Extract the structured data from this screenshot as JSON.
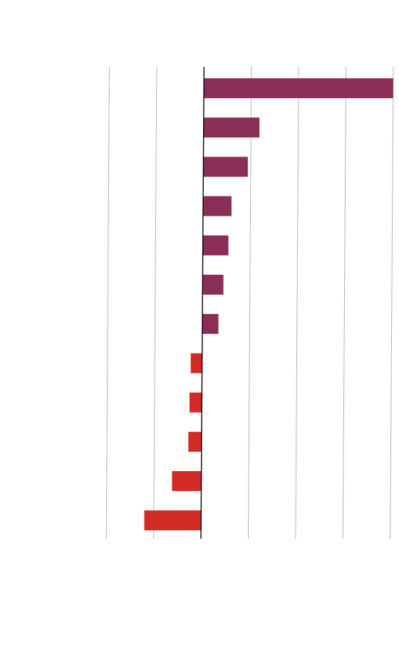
{
  "chart_data": {
    "type": "bar",
    "orientation": "horizontal",
    "title": "",
    "xlabel": "",
    "ylabel": "",
    "categories": [
      "",
      "",
      "",
      "",
      "",
      "",
      "",
      "",
      "",
      "",
      "",
      ""
    ],
    "values": [
      20.0,
      5.9,
      4.7,
      3.0,
      2.7,
      2.2,
      1.7,
      -1.2,
      -1.3,
      -1.4,
      -3.1,
      -6.0
    ],
    "xlim": [
      -10,
      20
    ],
    "grid": true,
    "tick_labels_visible": false,
    "colors": {
      "positive": "#8a2d57",
      "negative": "#d22b25",
      "grid": "#b3b3b3",
      "axis": "#000000"
    }
  }
}
